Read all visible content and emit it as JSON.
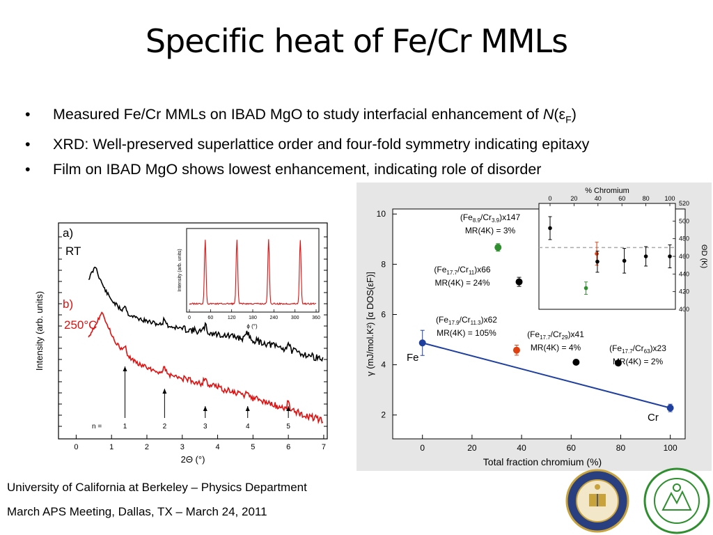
{
  "title": "Specific heat of Fe/Cr MMLs",
  "bullets": [
    "Measured Fe/Cr MMLs on IBAD MgO to study interfacial enhancement of ",
    "XRD: Well-preserved superlattice order and four-fold symmetry indicating epitaxy",
    "Film on IBAD MgO shows lowest enhancement, indicating role of disorder"
  ],
  "bullet1_tail": {
    "N": "N",
    "open": "(ε",
    "sub": "F",
    "close": ")"
  },
  "footer": {
    "line1": "University of California at Berkeley – Physics Department",
    "line2": "March APS Meeting, Dallas, TX – March 24, 2011"
  },
  "colors": {
    "black": "#000000",
    "red": "#e01010",
    "blue": "#1f3f9f",
    "green": "#2f8f2f",
    "orange": "#e04010",
    "gray": "#aaaaaa"
  },
  "logos": {
    "left": "uc-seal-icon",
    "right": "doe-seal-icon"
  },
  "chart_data": [
    {
      "type": "line",
      "id": "xrd-2theta",
      "xlabel": "2Θ (°)",
      "ylabel": "Intensity (arb. units)",
      "xlim": [
        -0.5,
        7.1
      ],
      "xticks": [
        0,
        1,
        2,
        3,
        4,
        5,
        6,
        7
      ],
      "series": [
        {
          "name": "a) RT",
          "label_lines": [
            "a)",
            "RT"
          ],
          "color": "#000000"
        },
        {
          "name": "b) 250°C",
          "label_lines": [
            "b)",
            "250°C"
          ],
          "color": "#e01010"
        }
      ],
      "peak_markers": {
        "prefix": "n =",
        "labels": [
          "1",
          "2",
          "3",
          "4",
          "5"
        ],
        "x": [
          1.38,
          2.5,
          3.65,
          4.85,
          6.0
        ]
      }
    },
    {
      "type": "line",
      "id": "xrd-phi-inset",
      "xlabel": "ϕ (°)",
      "ylabel": "Intensity (arb. units)",
      "xlim": [
        0,
        360
      ],
      "xticks": [
        0,
        60,
        120,
        180,
        240,
        300,
        360
      ],
      "peaks_at": [
        45,
        135,
        225,
        315
      ],
      "color": "#e01010"
    },
    {
      "type": "scatter",
      "id": "gamma-vs-cr",
      "xlabel": "Total fraction chromium (%)",
      "ylabel": "γ (mJ/mol.K²) [α DOS(εF)]",
      "xlim": [
        -12,
        106
      ],
      "ylim": [
        1.05,
        10.2
      ],
      "xticks": [
        0,
        20,
        40,
        60,
        80,
        100
      ],
      "yticks": [
        2,
        4,
        6,
        8,
        10
      ],
      "points": [
        {
          "x": 0,
          "y": 4.87,
          "err": 0.5,
          "color": "#1f3f9f",
          "label": "Fe"
        },
        {
          "x": 100,
          "y": 2.28,
          "err": 0.15,
          "color": "#1f3f9f",
          "label": "Cr"
        },
        {
          "x": 30.5,
          "y": 8.67,
          "err": 0.15,
          "color": "#2f8f2f"
        },
        {
          "x": 39,
          "y": 7.3,
          "err": 0.18,
          "color": "#000000"
        },
        {
          "x": 38,
          "y": 4.58,
          "err": 0.2,
          "color": "#e04010"
        },
        {
          "x": 62,
          "y": 4.1,
          "err": 0,
          "color": "#000000"
        },
        {
          "x": 79,
          "y": 4.07,
          "err": 0,
          "color": "#000000"
        }
      ],
      "fit_line": {
        "x": [
          0,
          100
        ],
        "y": [
          4.87,
          2.28
        ],
        "color": "#1f3f9f"
      },
      "annotations": [
        {
          "base": "(Fe",
          "s1": "8.9",
          "mid": "/Cr",
          "s2": "3.9",
          "tail": ")x147",
          "mr": "MR(4K) = 3%"
        },
        {
          "base": "(Fe",
          "s1": "17.7",
          "mid": "/Cr",
          "s2": "11",
          "tail": ")x66",
          "mr": "MR(4K) = 24%"
        },
        {
          "base": "(Fe",
          "s1": "17.9",
          "mid": "/Cr",
          "s2": "11.3",
          "tail": ")x62",
          "mr": "MR(4K) = 105%"
        },
        {
          "base": "(Fe",
          "s1": "17.7",
          "mid": "/Cr",
          "s2": "29",
          "tail": ")x41",
          "mr": "MR(4K) = 4%"
        },
        {
          "base": "(Fe",
          "s1": "17.7",
          "mid": "/Cr",
          "s2": "63",
          "tail": ")x23",
          "mr": "MR(4K) = 2%"
        }
      ]
    },
    {
      "type": "scatter",
      "id": "debye-inset",
      "xlabel": "% Chromium",
      "ylabel": "ΘD (K)",
      "xlim": [
        0,
        100
      ],
      "ylim": [
        400,
        520
      ],
      "xticks": [
        0,
        20,
        40,
        60,
        80,
        100
      ],
      "yticks": [
        400,
        420,
        440,
        460,
        480,
        500,
        520
      ],
      "reference_line_y": 470,
      "points": [
        {
          "x": 0,
          "y": 492,
          "err": 13,
          "color": "#000000"
        },
        {
          "x": 30,
          "y": 424,
          "err": 7,
          "color": "#2f8f2f"
        },
        {
          "x": 39,
          "y": 463,
          "err": 13,
          "color": "#e04010"
        },
        {
          "x": 39.5,
          "y": 454,
          "err": 12,
          "color": "#000000"
        },
        {
          "x": 62,
          "y": 455,
          "err": 14,
          "color": "#000000"
        },
        {
          "x": 80,
          "y": 460,
          "err": 11,
          "color": "#000000"
        },
        {
          "x": 100,
          "y": 460,
          "err": 13,
          "color": "#000000"
        }
      ]
    }
  ]
}
